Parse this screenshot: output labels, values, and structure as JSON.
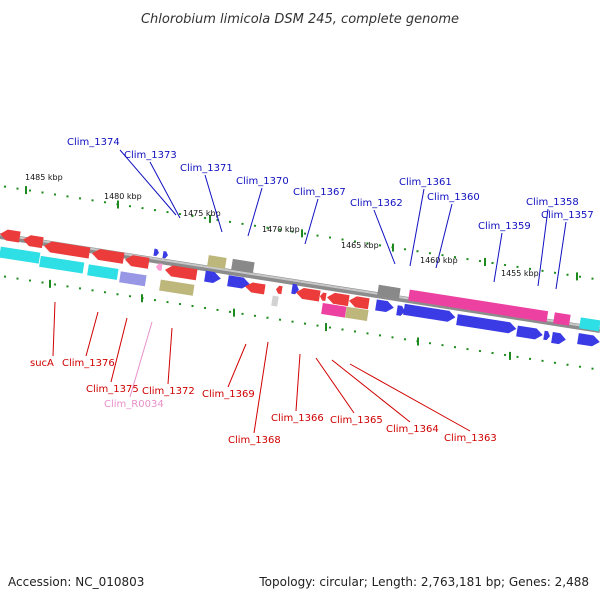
{
  "title": "Chlorobium limicola DSM 245, complete genome",
  "footer": {
    "accession": "Accession: NC_010803",
    "summary": "Topology: circular; Length: 2,763,181 bp; Genes: 2,488"
  },
  "colors": {
    "forward_cds": "#1010e0",
    "reverse_cds": "#e81010",
    "rna": "#00d8e0",
    "pseudo": "#8080e0",
    "magenta": "#e8188c",
    "olive": "#b0a860",
    "gray": "#707070",
    "scale_ticks": "#1c8a1c",
    "label_forward": "#1010c0",
    "label_reverse": "#d00000",
    "label_pink": "#e890c8"
  },
  "scale": [
    {
      "label": "1485 kbp"
    },
    {
      "label": "1480 kbp"
    },
    {
      "label": "1475 kbp"
    },
    {
      "label": "1470 kbp"
    },
    {
      "label": "1465 kbp"
    },
    {
      "label": "1460 kbp"
    },
    {
      "label": "1455 kbp"
    }
  ],
  "genes_top": [
    {
      "label": "Clim_1374"
    },
    {
      "label": "Clim_1373"
    },
    {
      "label": "Clim_1371"
    },
    {
      "label": "Clim_1370"
    },
    {
      "label": "Clim_1367"
    },
    {
      "label": "Clim_1362"
    },
    {
      "label": "Clim_1361"
    },
    {
      "label": "Clim_1360"
    },
    {
      "label": "Clim_1359"
    },
    {
      "label": "Clim_1358"
    },
    {
      "label": "Clim_1357"
    }
  ],
  "genes_bottom": [
    {
      "label": "sucA"
    },
    {
      "label": "Clim_1376"
    },
    {
      "label": "Clim_1375"
    },
    {
      "label": "Clim_R0034"
    },
    {
      "label": "Clim_1372"
    },
    {
      "label": "Clim_1369"
    },
    {
      "label": "Clim_1368"
    },
    {
      "label": "Clim_1366"
    },
    {
      "label": "Clim_1365"
    },
    {
      "label": "Clim_1364"
    },
    {
      "label": "Clim_1363"
    }
  ]
}
